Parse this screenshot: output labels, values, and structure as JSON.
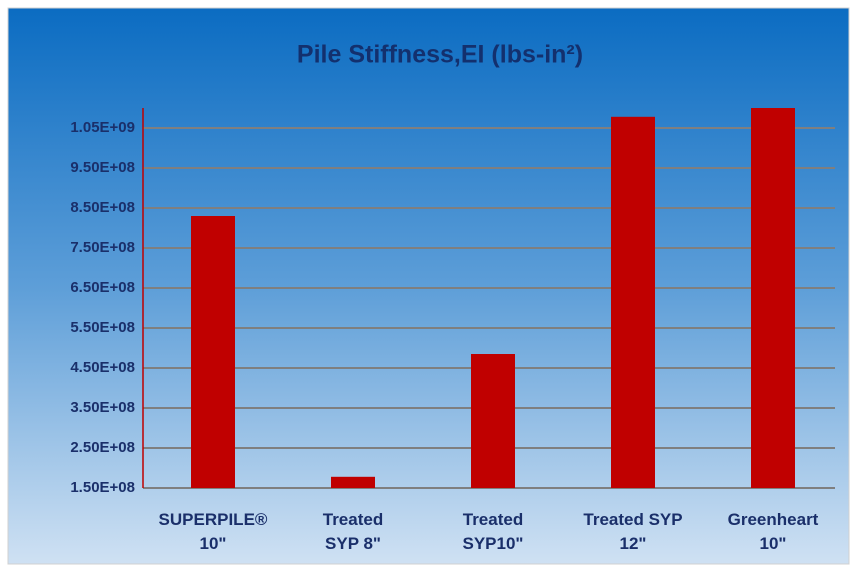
{
  "chart_data": {
    "type": "bar",
    "title": "Pile Stiffness,EI (lbs-in²)",
    "categories": [
      "SUPERPILE®\n10\"",
      "Treated\nSYP 8\"",
      "Treated\nSYP10\"",
      "Treated SYP\n12\"",
      "Greenheart\n10\""
    ],
    "values": [
      830000000,
      178000000,
      485000000,
      1078000000,
      1100000000
    ],
    "color": "#c00000",
    "ylim": [
      150000000,
      1100000000
    ],
    "yticks": [
      {
        "value": 150000000,
        "label": "1.50E+08"
      },
      {
        "value": 250000000,
        "label": "2.50E+08"
      },
      {
        "value": 350000000,
        "label": "3.50E+08"
      },
      {
        "value": 450000000,
        "label": "4.50E+08"
      },
      {
        "value": 550000000,
        "label": "5.50E+08"
      },
      {
        "value": 650000000,
        "label": "6.50E+08"
      },
      {
        "value": 750000000,
        "label": "7.50E+08"
      },
      {
        "value": 850000000,
        "label": "8.50E+08"
      },
      {
        "value": 950000000,
        "label": "9.50E+08"
      },
      {
        "value": 1050000000,
        "label": "1.05E+09"
      }
    ],
    "grid": true
  }
}
